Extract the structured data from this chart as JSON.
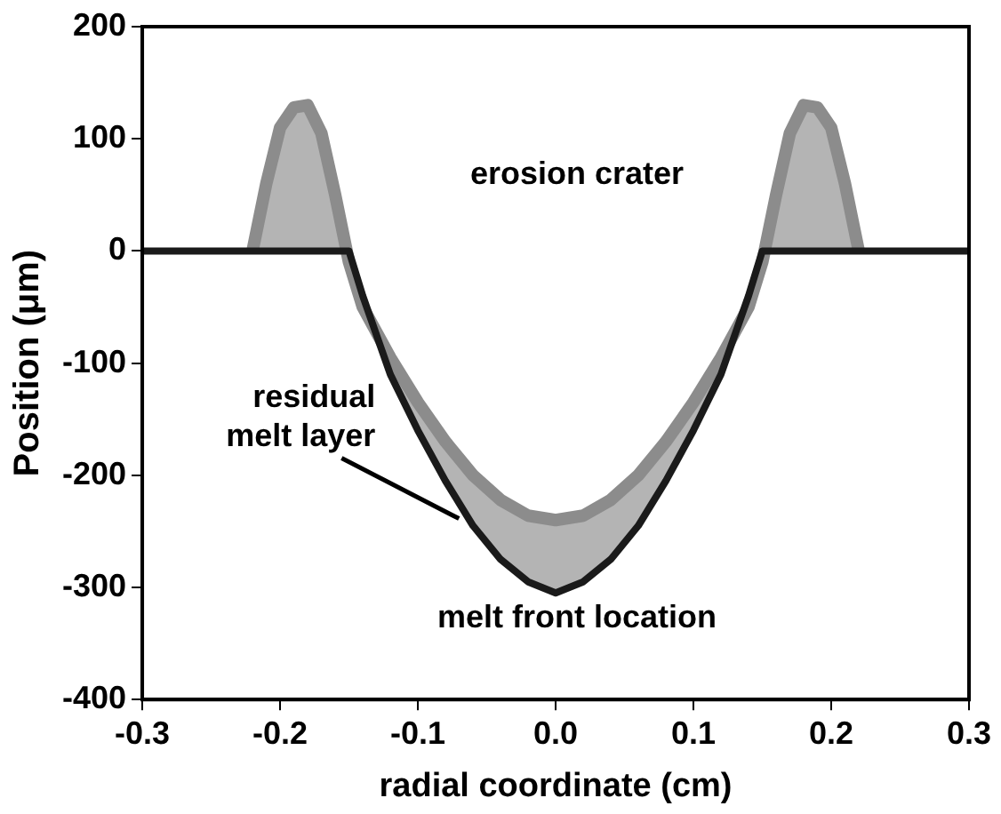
{
  "chart_data": {
    "type": "line",
    "xlabel": "radial coordinate (cm)",
    "ylabel": "Position (μm)",
    "series": [
      {
        "color": "#8c8c8c",
        "x": [
          -0.22,
          -0.21,
          -0.2,
          -0.19,
          -0.18,
          -0.17,
          -0.16,
          -0.15,
          -0.14,
          -0.12,
          -0.1,
          -0.08,
          -0.06,
          -0.04,
          -0.02,
          0,
          0.02,
          0.04,
          0.06,
          0.08,
          0.1,
          0.12,
          0.14,
          0.15,
          0.16,
          0.17,
          0.18,
          0.19,
          0.2,
          0.21,
          0.22
        ],
        "values": [
          0,
          60,
          110,
          128,
          130,
          105,
          50,
          -10,
          -50,
          -95,
          -135,
          -170,
          -200,
          -222,
          -236,
          -240,
          -236,
          -222,
          -200,
          -170,
          -135,
          -95,
          -50,
          -10,
          50,
          105,
          130,
          128,
          110,
          60,
          0
        ],
        "lower": [
          0,
          0,
          0,
          0,
          0,
          0,
          0,
          0,
          -40,
          -110,
          -160,
          -205,
          -245,
          -275,
          -295,
          -305,
          -295,
          -275,
          -245,
          -205,
          -160,
          -110,
          -40,
          0,
          0,
          0,
          0,
          0,
          0,
          0,
          0
        ],
        "upper": [
          0,
          60,
          110,
          128,
          130,
          105,
          50,
          -10,
          -50,
          -95,
          -135,
          -170,
          -200,
          -222,
          -236,
          -240,
          -236,
          -222,
          -200,
          -170,
          -135,
          -95,
          -50,
          -10,
          50,
          105,
          130,
          128,
          110,
          60,
          0
        ]
      },
      {
        "color": "#1a1a1a",
        "x": [
          -0.3,
          -0.15,
          -0.14,
          -0.12,
          -0.1,
          -0.08,
          -0.06,
          -0.04,
          -0.02,
          0,
          0.02,
          0.04,
          0.06,
          0.08,
          0.1,
          0.12,
          0.14,
          0.15,
          0.3
        ],
        "values": [
          0,
          0,
          -40,
          -110,
          -160,
          -205,
          -245,
          -275,
          -295,
          -305,
          -295,
          -275,
          -245,
          -205,
          -160,
          -110,
          -40,
          0,
          0
        ]
      }
    ],
    "xlim": [
      -0.3,
      0.3
    ],
    "xticks": [
      -0.3,
      -0.2,
      -0.1,
      {
        "value": 0,
        "label": "0.0"
      },
      0.1,
      0.2,
      0.3
    ],
    "ylim": [
      -400,
      200
    ],
    "yticks": [
      -400,
      -300,
      -200,
      -100,
      0,
      100,
      200
    ],
    "grid": false,
    "legend": false,
    "marker": "none",
    "line_style": "solid",
    "annotations": [
      "erosion crater",
      {
        "text": "residual melt layer",
        "x": -0.065,
        "y": -245
      },
      "melt front location"
    ]
  }
}
